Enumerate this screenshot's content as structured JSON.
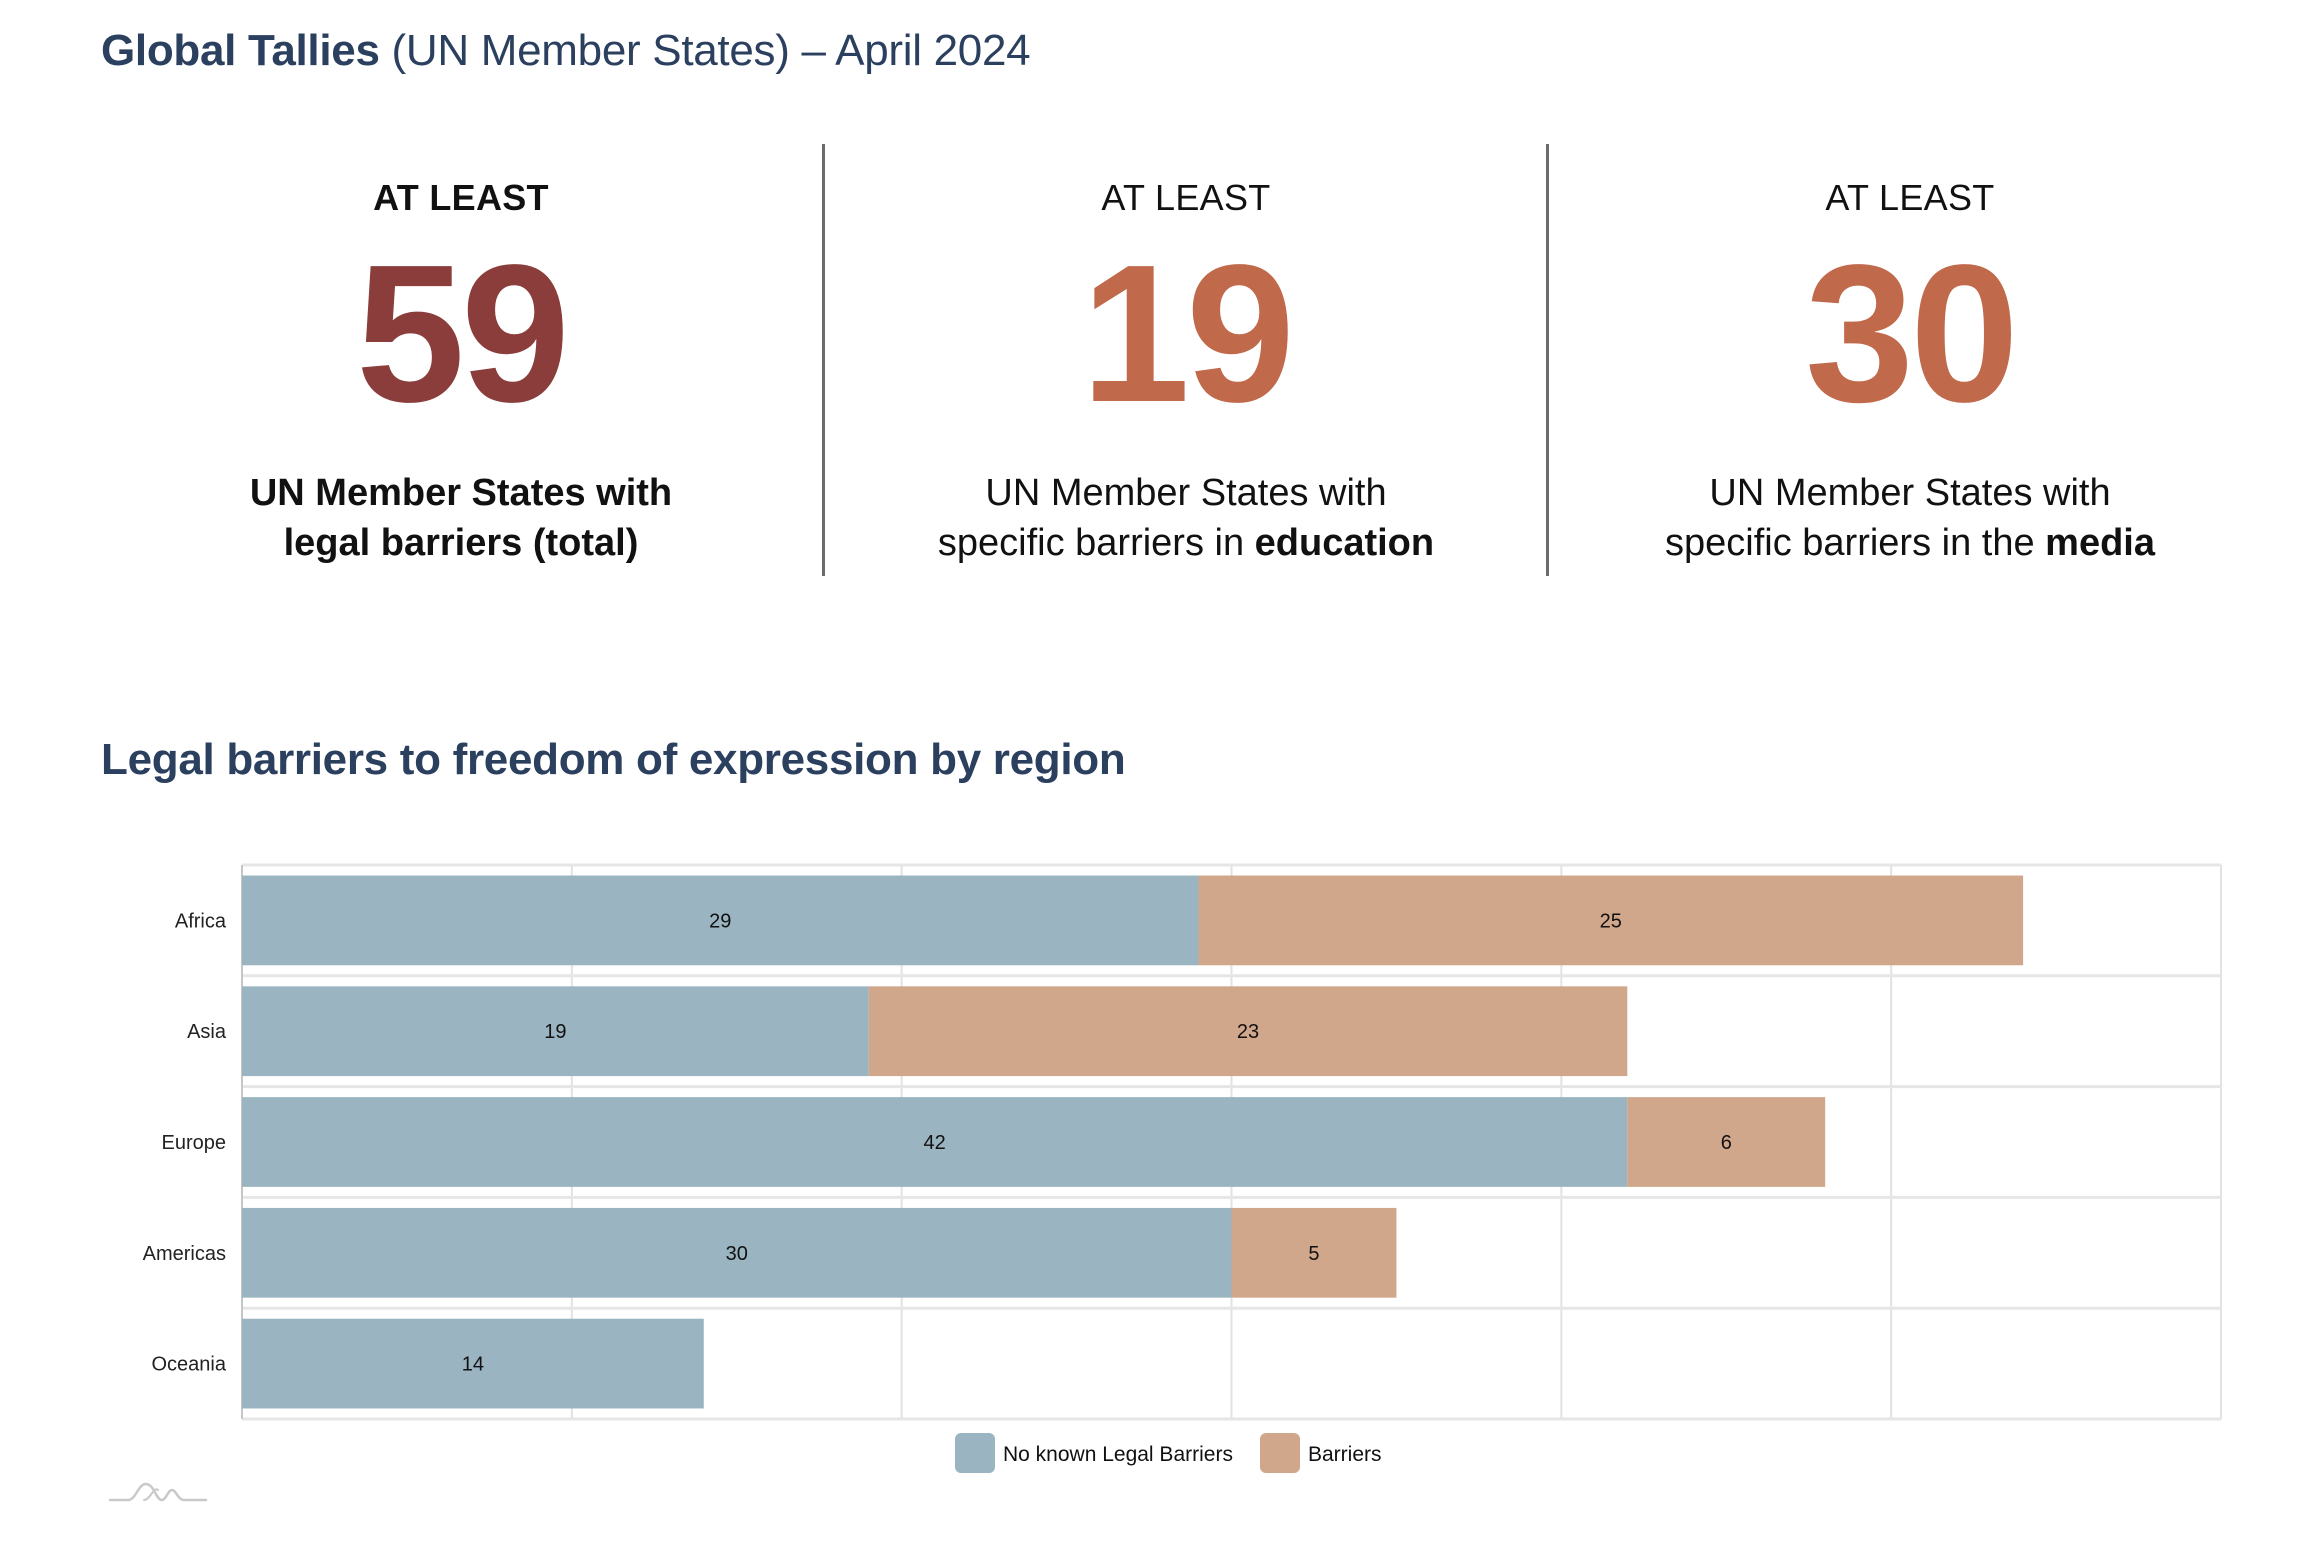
{
  "header": {
    "title_bold": "Global Tallies",
    "title_rest": " (UN Member States) – April 2024"
  },
  "stats": [
    {
      "eyebrow": "AT LEAST",
      "value": "59",
      "color": "#8A3D3A",
      "desc_line1": "UN Member States with",
      "desc_line2_plain": "legal barriers (total)",
      "desc_line2_bold": ""
    },
    {
      "eyebrow": "AT LEAST",
      "value": "19",
      "color": "#C0694B",
      "desc_line1": "UN Member States with",
      "desc_line2_plain": "specific barriers in ",
      "desc_line2_bold": "education"
    },
    {
      "eyebrow": "AT LEAST",
      "value": "30",
      "color": "#C0694B",
      "desc_line1": "UN Member States with",
      "desc_line2_plain": "specific barriers in the ",
      "desc_line2_bold": "media"
    }
  ],
  "chart_title": "Legal barriers to freedom of expression by region",
  "chart_data": {
    "type": "bar",
    "orientation": "horizontal",
    "stacked": true,
    "title": "Legal barriers to freedom of expression by region",
    "xlabel": "",
    "ylabel": "",
    "categories": [
      "Africa",
      "Asia",
      "Europe",
      "Americas",
      "Oceania"
    ],
    "series": [
      {
        "name": "No known Legal Barriers",
        "color": "#9AB5C1",
        "values": [
          29,
          19,
          42,
          30,
          14
        ]
      },
      {
        "name": "Barriers",
        "color": "#D1A78B",
        "values": [
          25,
          23,
          6,
          5,
          0
        ]
      }
    ],
    "xlim": [
      0,
      60
    ],
    "x_gridlines": [
      0,
      10,
      20,
      30,
      40,
      50,
      60
    ],
    "x_tick_labels_visible": false,
    "grid": true,
    "data_labels": true,
    "legend_position": "bottom-center"
  },
  "logo": {
    "icon": "mountain-wave-logo"
  }
}
